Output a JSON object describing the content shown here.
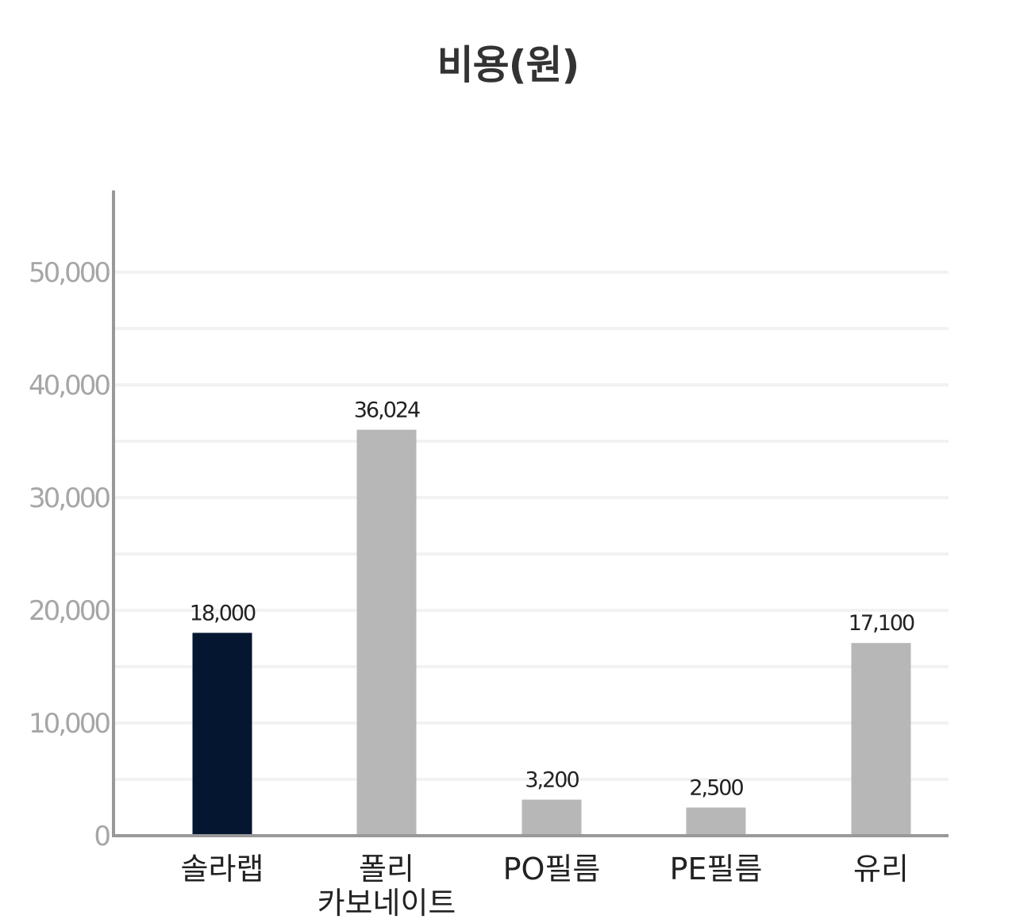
{
  "chart_data": {
    "type": "bar",
    "title": "비용(원)",
    "categories": [
      [
        "솔라랩"
      ],
      [
        "폴리",
        "카보네이트"
      ],
      [
        "PO필름"
      ],
      [
        "PE필름"
      ],
      [
        "유리"
      ]
    ],
    "values": [
      18000,
      36024,
      3200,
      2500,
      17100
    ],
    "value_labels": [
      "18,000",
      "36,024",
      "3,200",
      "2,500",
      "17,100"
    ],
    "bar_colors": [
      "#041630",
      "#b7b7b7",
      "#b7b7b7",
      "#b7b7b7",
      "#b7b7b7"
    ],
    "y_ticks": [
      0,
      10000,
      20000,
      30000,
      40000,
      50000
    ],
    "y_tick_labels": [
      "0",
      "10,000",
      "20,000",
      "30,000",
      "40,000",
      "50,000"
    ],
    "ylim": [
      0,
      56000
    ],
    "grid": true,
    "legend": false,
    "colors": {
      "grid": "#f2f2f2",
      "axis": "#999999",
      "highlight": "#041630",
      "default_bar": "#b7b7b7"
    }
  }
}
